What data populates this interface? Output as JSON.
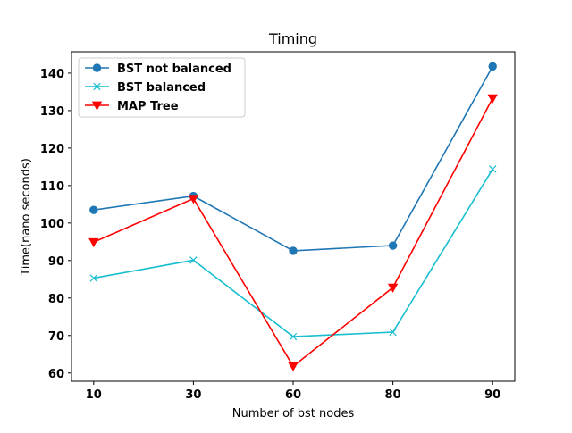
{
  "chart_data": {
    "type": "line",
    "title": "Timing",
    "xlabel": "Number of bst nodes",
    "ylabel": "Time(nano seconds)",
    "categories": [
      "10",
      "30",
      "60",
      "80",
      "90"
    ],
    "ylim": [
      57.8,
      145.7
    ],
    "yticks": [
      60,
      70,
      80,
      90,
      100,
      110,
      120,
      130,
      140
    ],
    "grid": false,
    "legend_position": "top-left",
    "series": [
      {
        "name": "BST not balanced",
        "values": [
          103.5,
          107.2,
          92.6,
          94.0,
          141.8
        ],
        "color": "#1f77b4",
        "marker": "circle"
      },
      {
        "name": "BST balanced",
        "values": [
          85.3,
          90.1,
          69.7,
          70.9,
          114.4
        ],
        "color": "#17becf",
        "marker": "x"
      },
      {
        "name": "MAP Tree",
        "values": [
          94.9,
          106.5,
          61.8,
          82.8,
          133.3
        ],
        "color": "#ff0000",
        "marker": "triangle-down"
      }
    ]
  }
}
